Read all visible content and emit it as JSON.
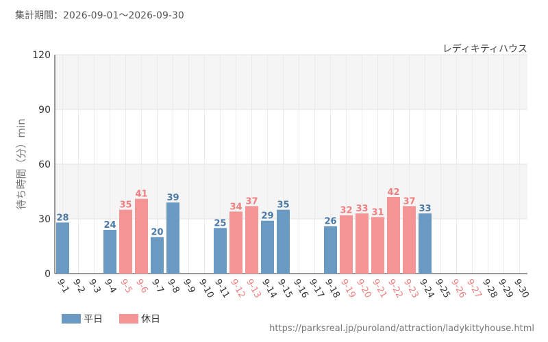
{
  "header": {
    "period": "集計期間：2026-09-01～2026-09-30"
  },
  "footer": {
    "source": "https://parksreal.jp/puroland/attraction/ladykittyhouse.html"
  },
  "colors": {
    "weekday": "#6a99c2",
    "holiday": "#f59494",
    "weekday_text": "#4a7aa6",
    "holiday_text": "#ef7f7f",
    "tick_default": "#333333"
  },
  "chart_data": {
    "type": "bar",
    "title": "レディキティハウス",
    "ylabel": "待ち時間（分）min",
    "xlabel": "",
    "ylim": [
      0,
      120
    ],
    "yticks": [
      0,
      30,
      60,
      90,
      120
    ],
    "grid": true,
    "legend_placement": "bottom-left",
    "categories": [
      "9-1",
      "9-2",
      "9-3",
      "9-4",
      "9-5",
      "9-6",
      "9-7",
      "9-8",
      "9-9",
      "9-10",
      "9-11",
      "9-12",
      "9-13",
      "9-14",
      "9-15",
      "9-16",
      "9-17",
      "9-18",
      "9-19",
      "9-20",
      "9-21",
      "9-22",
      "9-23",
      "9-24",
      "9-25",
      "9-26",
      "9-27",
      "9-28",
      "9-29",
      "9-30"
    ],
    "day_types": [
      "weekday",
      "weekday",
      "weekday",
      "weekday",
      "holiday",
      "holiday",
      "weekday",
      "weekday",
      "weekday",
      "weekday",
      "weekday",
      "holiday",
      "holiday",
      "weekday",
      "weekday",
      "weekday",
      "weekday",
      "weekday",
      "holiday",
      "holiday",
      "holiday",
      "holiday",
      "holiday",
      "weekday",
      "weekday",
      "holiday",
      "holiday",
      "weekday",
      "weekday",
      "weekday"
    ],
    "values": [
      28,
      null,
      null,
      24,
      35,
      41,
      20,
      39,
      null,
      null,
      25,
      34,
      37,
      29,
      35,
      null,
      null,
      26,
      32,
      33,
      31,
      42,
      37,
      33,
      null,
      null,
      null,
      null,
      null,
      null
    ],
    "series": [
      {
        "name": "平日",
        "key": "weekday"
      },
      {
        "name": "休日",
        "key": "holiday"
      }
    ]
  }
}
